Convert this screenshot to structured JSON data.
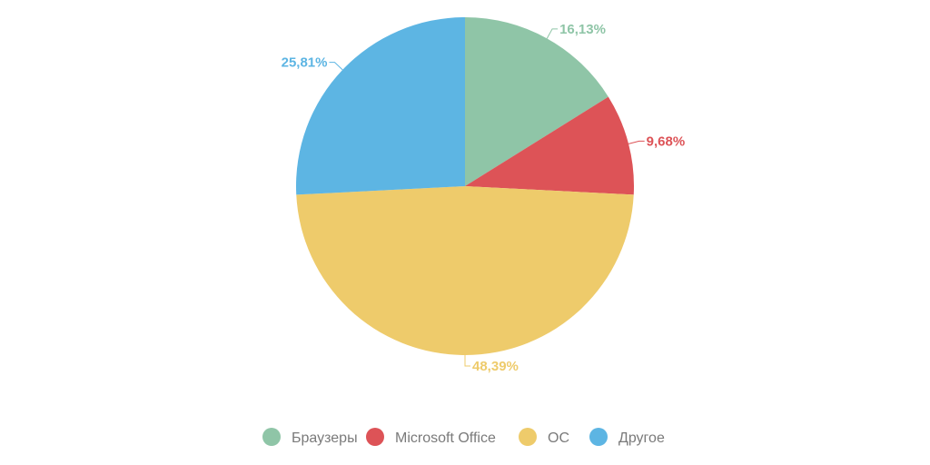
{
  "chart_data": {
    "type": "pie",
    "categories": [
      "Браузеры",
      "Microsoft Office",
      "ОС",
      "Другое"
    ],
    "values": [
      16.13,
      9.68,
      48.39,
      25.81
    ],
    "labels": [
      "16,13%",
      "9,68%",
      "48,39%",
      "25,81%"
    ],
    "colors": [
      "#8fc5a7",
      "#dd5357",
      "#eecb6b",
      "#5db5e3"
    ],
    "legend_position": "bottom"
  }
}
